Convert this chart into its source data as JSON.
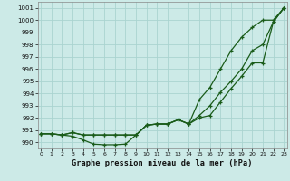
{
  "title": "Graphe pression niveau de la mer (hPa)",
  "bg_color": "#cceae7",
  "grid_color": "#aad4d0",
  "line_color": "#1a5c1a",
  "ylim": [
    989.5,
    1001.5
  ],
  "yticks": [
    990,
    991,
    992,
    993,
    994,
    995,
    996,
    997,
    998,
    999,
    1000,
    1001
  ],
  "line_dip": [
    990.7,
    990.7,
    990.6,
    990.5,
    990.2,
    989.85,
    989.8,
    989.8,
    989.85,
    990.6,
    991.4,
    991.5,
    991.5,
    991.85,
    991.5,
    992.0,
    992.2,
    993.3,
    994.4,
    995.4,
    996.5,
    996.5,
    999.85,
    1001.0
  ],
  "line_mid": [
    990.7,
    990.7,
    990.6,
    990.8,
    990.6,
    990.6,
    990.6,
    990.6,
    990.6,
    990.6,
    991.4,
    991.5,
    991.5,
    991.85,
    991.5,
    992.2,
    993.0,
    994.1,
    995.0,
    996.0,
    997.5,
    998.0,
    999.85,
    1001.0
  ],
  "line_top": [
    990.7,
    990.7,
    990.6,
    990.8,
    990.6,
    990.6,
    990.6,
    990.6,
    990.6,
    990.6,
    991.4,
    991.5,
    991.5,
    991.85,
    991.5,
    993.5,
    994.5,
    996.0,
    997.5,
    998.6,
    999.4,
    1000.0,
    1000.0,
    1001.0
  ]
}
